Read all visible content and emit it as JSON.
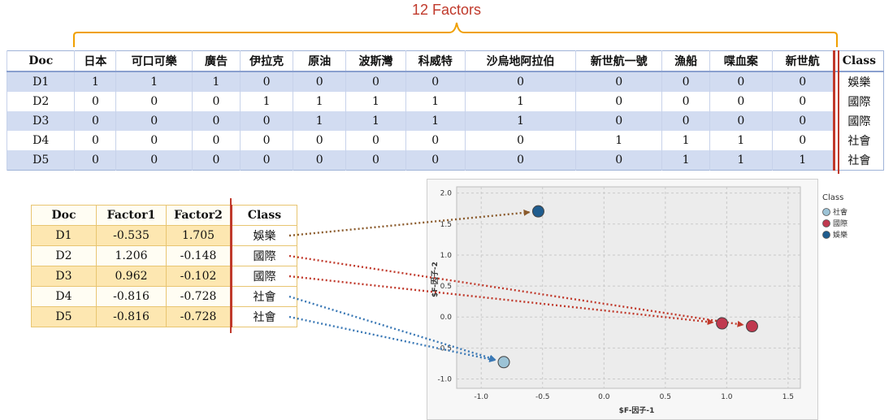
{
  "annotation": {
    "label": "12 Factors",
    "color": "#c0392b",
    "brace_color": "#f0a000"
  },
  "matrix": {
    "headers": [
      "Doc",
      "日本",
      "可口可樂",
      "廣告",
      "伊拉克",
      "原油",
      "波斯灣",
      "科威特",
      "沙烏地阿拉伯",
      "新世航一號",
      "漁船",
      "喋血案",
      "新世航",
      "Class"
    ],
    "rows": [
      [
        "D1",
        "1",
        "1",
        "1",
        "0",
        "0",
        "0",
        "0",
        "0",
        "0",
        "0",
        "0",
        "0",
        "娛樂"
      ],
      [
        "D2",
        "0",
        "0",
        "0",
        "1",
        "1",
        "1",
        "1",
        "1",
        "0",
        "0",
        "0",
        "0",
        "國際"
      ],
      [
        "D3",
        "0",
        "0",
        "0",
        "0",
        "1",
        "1",
        "1",
        "1",
        "0",
        "0",
        "0",
        "0",
        "國際"
      ],
      [
        "D4",
        "0",
        "0",
        "0",
        "0",
        "0",
        "0",
        "0",
        "0",
        "1",
        "1",
        "1",
        "0",
        "社會"
      ],
      [
        "D5",
        "0",
        "0",
        "0",
        "0",
        "0",
        "0",
        "0",
        "0",
        "0",
        "1",
        "1",
        "1",
        "社會"
      ]
    ]
  },
  "factors": {
    "headers": [
      "Doc",
      "Factor1",
      "Factor2",
      "Class"
    ],
    "rows": [
      [
        "D1",
        "-0.535",
        "1.705",
        "娛樂"
      ],
      [
        "D2",
        "1.206",
        "-0.148",
        "國際"
      ],
      [
        "D3",
        "0.962",
        "-0.102",
        "國際"
      ],
      [
        "D4",
        "-0.816",
        "-0.728",
        "社會"
      ],
      [
        "D5",
        "-0.816",
        "-0.728",
        "社會"
      ]
    ]
  },
  "chart_data": {
    "type": "scatter",
    "xlabel": "$F-因子-1",
    "ylabel": "$F-因子-2",
    "xlim": [
      -1.2,
      1.6
    ],
    "ylim": [
      -1.15,
      2.1
    ],
    "x_ticks": [
      "-1.0",
      "-0.5",
      "0.0",
      "0.5",
      "1.0",
      "1.5"
    ],
    "y_ticks": [
      "2.0",
      "1.5",
      "1.0",
      "0.5",
      "0.0",
      "-0.5",
      "-1.0"
    ],
    "grid": true,
    "legend": {
      "title": "Class",
      "position": "right",
      "entries": [
        {
          "name": "社會",
          "color": "#9cc3d6"
        },
        {
          "name": "國際",
          "color": "#c0394f"
        },
        {
          "name": "娛樂",
          "color": "#1f5c8e"
        }
      ]
    },
    "series": [
      {
        "name": "社會",
        "color": "#9cc3d6",
        "points": [
          {
            "x": -0.816,
            "y": -0.728
          }
        ]
      },
      {
        "name": "國際",
        "color": "#c0394f",
        "points": [
          {
            "x": 1.206,
            "y": -0.148
          },
          {
            "x": 0.962,
            "y": -0.102
          }
        ]
      },
      {
        "name": "娛樂",
        "color": "#1f5c8e",
        "points": [
          {
            "x": -0.535,
            "y": 1.705
          }
        ]
      }
    ]
  },
  "arrows": [
    {
      "from": "D1",
      "to_x": -0.535,
      "to_y": 1.705,
      "color": "#8a5a2b"
    },
    {
      "from": "D2",
      "to_x": 1.206,
      "to_y": -0.148,
      "color": "#c0392b"
    },
    {
      "from": "D3",
      "to_x": 0.962,
      "to_y": -0.102,
      "color": "#c0392b"
    },
    {
      "from": "D4",
      "to_x": -0.816,
      "to_y": -0.728,
      "color": "#3a78b5"
    },
    {
      "from": "D5",
      "to_x": -0.816,
      "to_y": -0.728,
      "color": "#3a78b5"
    }
  ]
}
